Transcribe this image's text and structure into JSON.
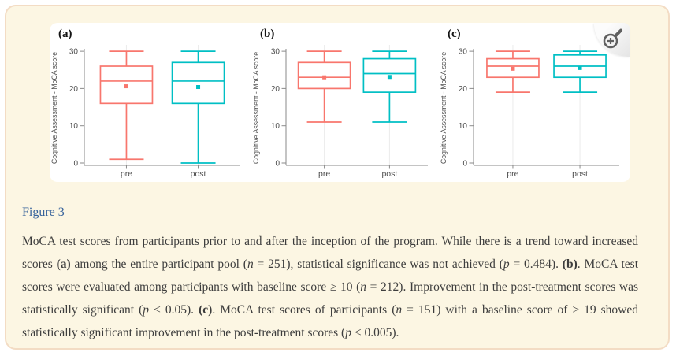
{
  "page": {
    "background": "#FCF6E3",
    "border_color": "#F3DCC4",
    "card_background": "#FFFFFF"
  },
  "figure_link": {
    "label": "Figure 3"
  },
  "zoom_button": {
    "icon": "magnifier-plus-icon"
  },
  "caption": {
    "runs": [
      {
        "text": "MoCA test scores from participants prior to and after the inception of the program. While there is a trend toward increased scores "
      },
      {
        "text": "(a)",
        "bold": true
      },
      {
        "text": " among the entire participant pool ("
      },
      {
        "text": "n",
        "italic": true
      },
      {
        "text": " = 251), statistical significance was not achieved ("
      },
      {
        "text": "p",
        "italic": true
      },
      {
        "text": " = 0.484). "
      },
      {
        "text": "(b)",
        "bold": true
      },
      {
        "text": ". MoCA test scores were evaluated among participants with baseline score ≥ 10 ("
      },
      {
        "text": "n",
        "italic": true
      },
      {
        "text": " = 212). Improvement in the post-treatment scores was statistically significant ("
      },
      {
        "text": "p",
        "italic": true
      },
      {
        "text": " < 0.05). "
      },
      {
        "text": "(c)",
        "bold": true
      },
      {
        "text": ". MoCA test scores of participants ("
      },
      {
        "text": "n",
        "italic": true
      },
      {
        "text": " = 151) with a baseline score of ≥ 19 showed statistically significant improvement in the post-treatment scores ("
      },
      {
        "text": "p",
        "italic": true
      },
      {
        "text": " < 0.005)."
      }
    ]
  },
  "chart_data": {
    "type": "boxplot",
    "ylabel": "Cognitive Assessment - MoCA score",
    "yticks": [
      0,
      10,
      20,
      30
    ],
    "ylim": [
      0,
      31
    ],
    "categories": [
      "pre",
      "post"
    ],
    "colors": {
      "pre": "#F8766D",
      "post": "#00BFC4"
    },
    "axis_color": "#8a8a8a",
    "tick_text_color": "#4d4d4d",
    "gridline_color": "#ebebeb",
    "panels": [
      {
        "label": "(a)",
        "boxes": [
          {
            "category": "pre",
            "color": "#F8766D",
            "whisker_low": 1,
            "q1": 16,
            "median": 22,
            "q3": 26,
            "whisker_high": 30,
            "mean": 20.6
          },
          {
            "category": "post",
            "color": "#00BFC4",
            "whisker_low": 0,
            "q1": 16,
            "median": 22,
            "q3": 27,
            "whisker_high": 30,
            "mean": 20.4
          }
        ]
      },
      {
        "label": "(b)",
        "boxes": [
          {
            "category": "pre",
            "color": "#F8766D",
            "whisker_low": 11,
            "q1": 20,
            "median": 23,
            "q3": 27,
            "whisker_high": 30,
            "mean": 23.0
          },
          {
            "category": "post",
            "color": "#00BFC4",
            "whisker_low": 11,
            "q1": 19,
            "median": 24,
            "q3": 28,
            "whisker_high": 30,
            "mean": 23.1
          }
        ]
      },
      {
        "label": "(c)",
        "boxes": [
          {
            "category": "pre",
            "color": "#F8766D",
            "whisker_low": 19,
            "q1": 23,
            "median": 26,
            "q3": 28,
            "whisker_high": 30,
            "mean": 25.3
          },
          {
            "category": "post",
            "color": "#00BFC4",
            "whisker_low": 19,
            "q1": 23,
            "median": 26,
            "q3": 29,
            "whisker_high": 30,
            "mean": 25.5
          }
        ]
      }
    ]
  }
}
